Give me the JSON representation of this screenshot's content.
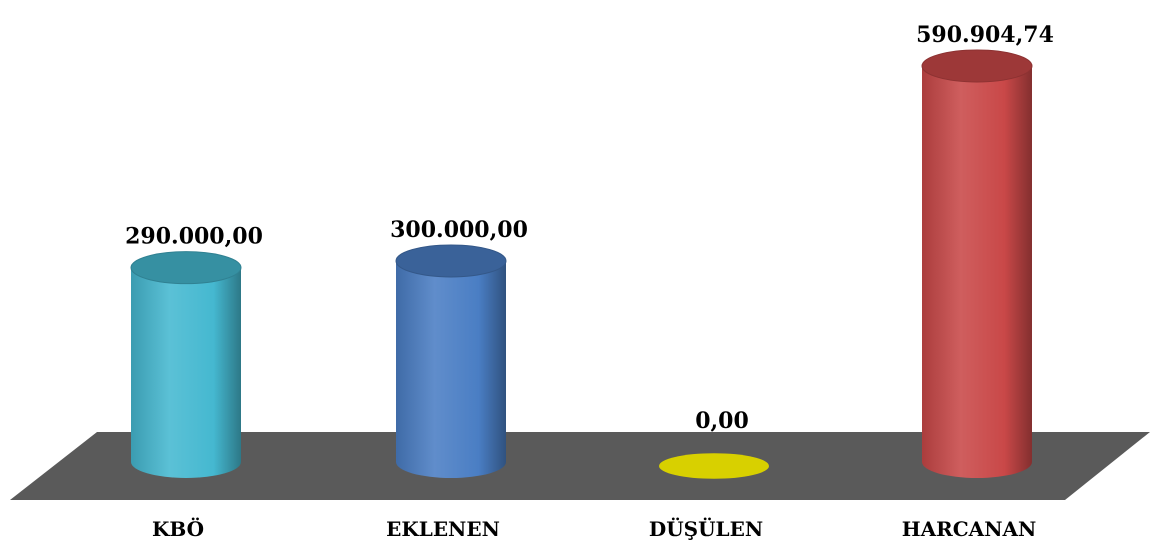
{
  "chart_data": {
    "type": "bar",
    "categories": [
      "KBÖ",
      "EKLENEN",
      "DÜŞÜLEN",
      "HARCANAN"
    ],
    "values": [
      290000.0,
      300000.0,
      0.0,
      590904.74
    ],
    "value_labels": [
      "290.000,00",
      "300.000,00",
      "0,00",
      "590.904,74"
    ],
    "colors": [
      "#45b8d0",
      "#4a7ec4",
      "#d8d000",
      "#c94848"
    ],
    "floor_color": "#5a5a5a",
    "title": "",
    "xlabel": "",
    "ylabel": "",
    "style": "3d-cylinder"
  }
}
